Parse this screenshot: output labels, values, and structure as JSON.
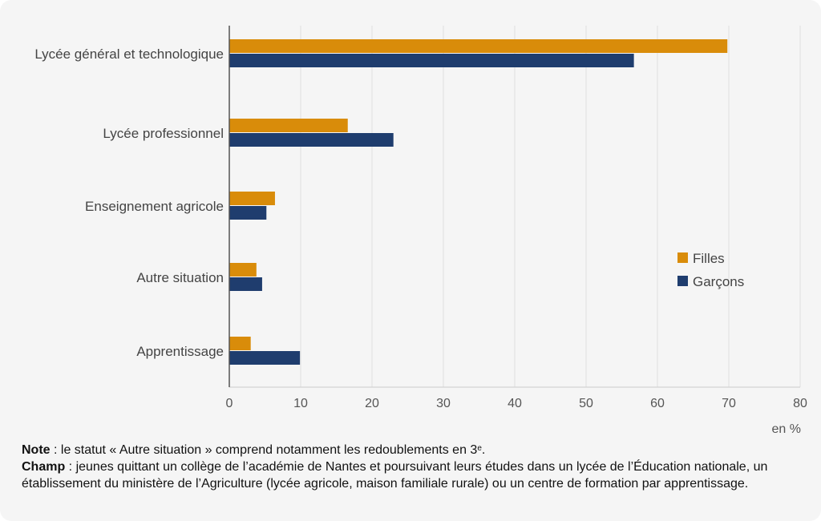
{
  "chart_data": {
    "type": "bar",
    "orientation": "horizontal",
    "categories": [
      "Lycée général et technologique",
      "Lycée professionnel",
      "Enseignement agricole",
      "Autre situation",
      "Apprentissage"
    ],
    "series": [
      {
        "name": "Filles",
        "color": "#d98c0a",
        "values": [
          69.8,
          16.6,
          6.4,
          3.8,
          3.0
        ]
      },
      {
        "name": "Garçons",
        "color": "#1f3d6e",
        "values": [
          56.7,
          23.0,
          5.2,
          4.6,
          9.9
        ]
      }
    ],
    "xlim": [
      0,
      80
    ],
    "xticks": [
      "0",
      "10",
      "20",
      "30",
      "40",
      "50",
      "60",
      "70",
      "80"
    ],
    "unit_label": "en %",
    "grid": true,
    "legend_position": "right"
  },
  "notes": {
    "note_label": "Note",
    "note_text_pre": " : le statut « Autre situation » comprend notamment les redoublements en 3",
    "note_sup": "e",
    "note_text_post": ".",
    "champ_label": "Champ",
    "champ_text": " : jeunes quittant un collège de l’académie de Nantes et poursuivant leurs études dans un lycée de l’Éducation nationale, un établissement du ministère de l’Agriculture (lycée agricole, maison familiale rurale) ou un centre de formation par apprentissage."
  }
}
